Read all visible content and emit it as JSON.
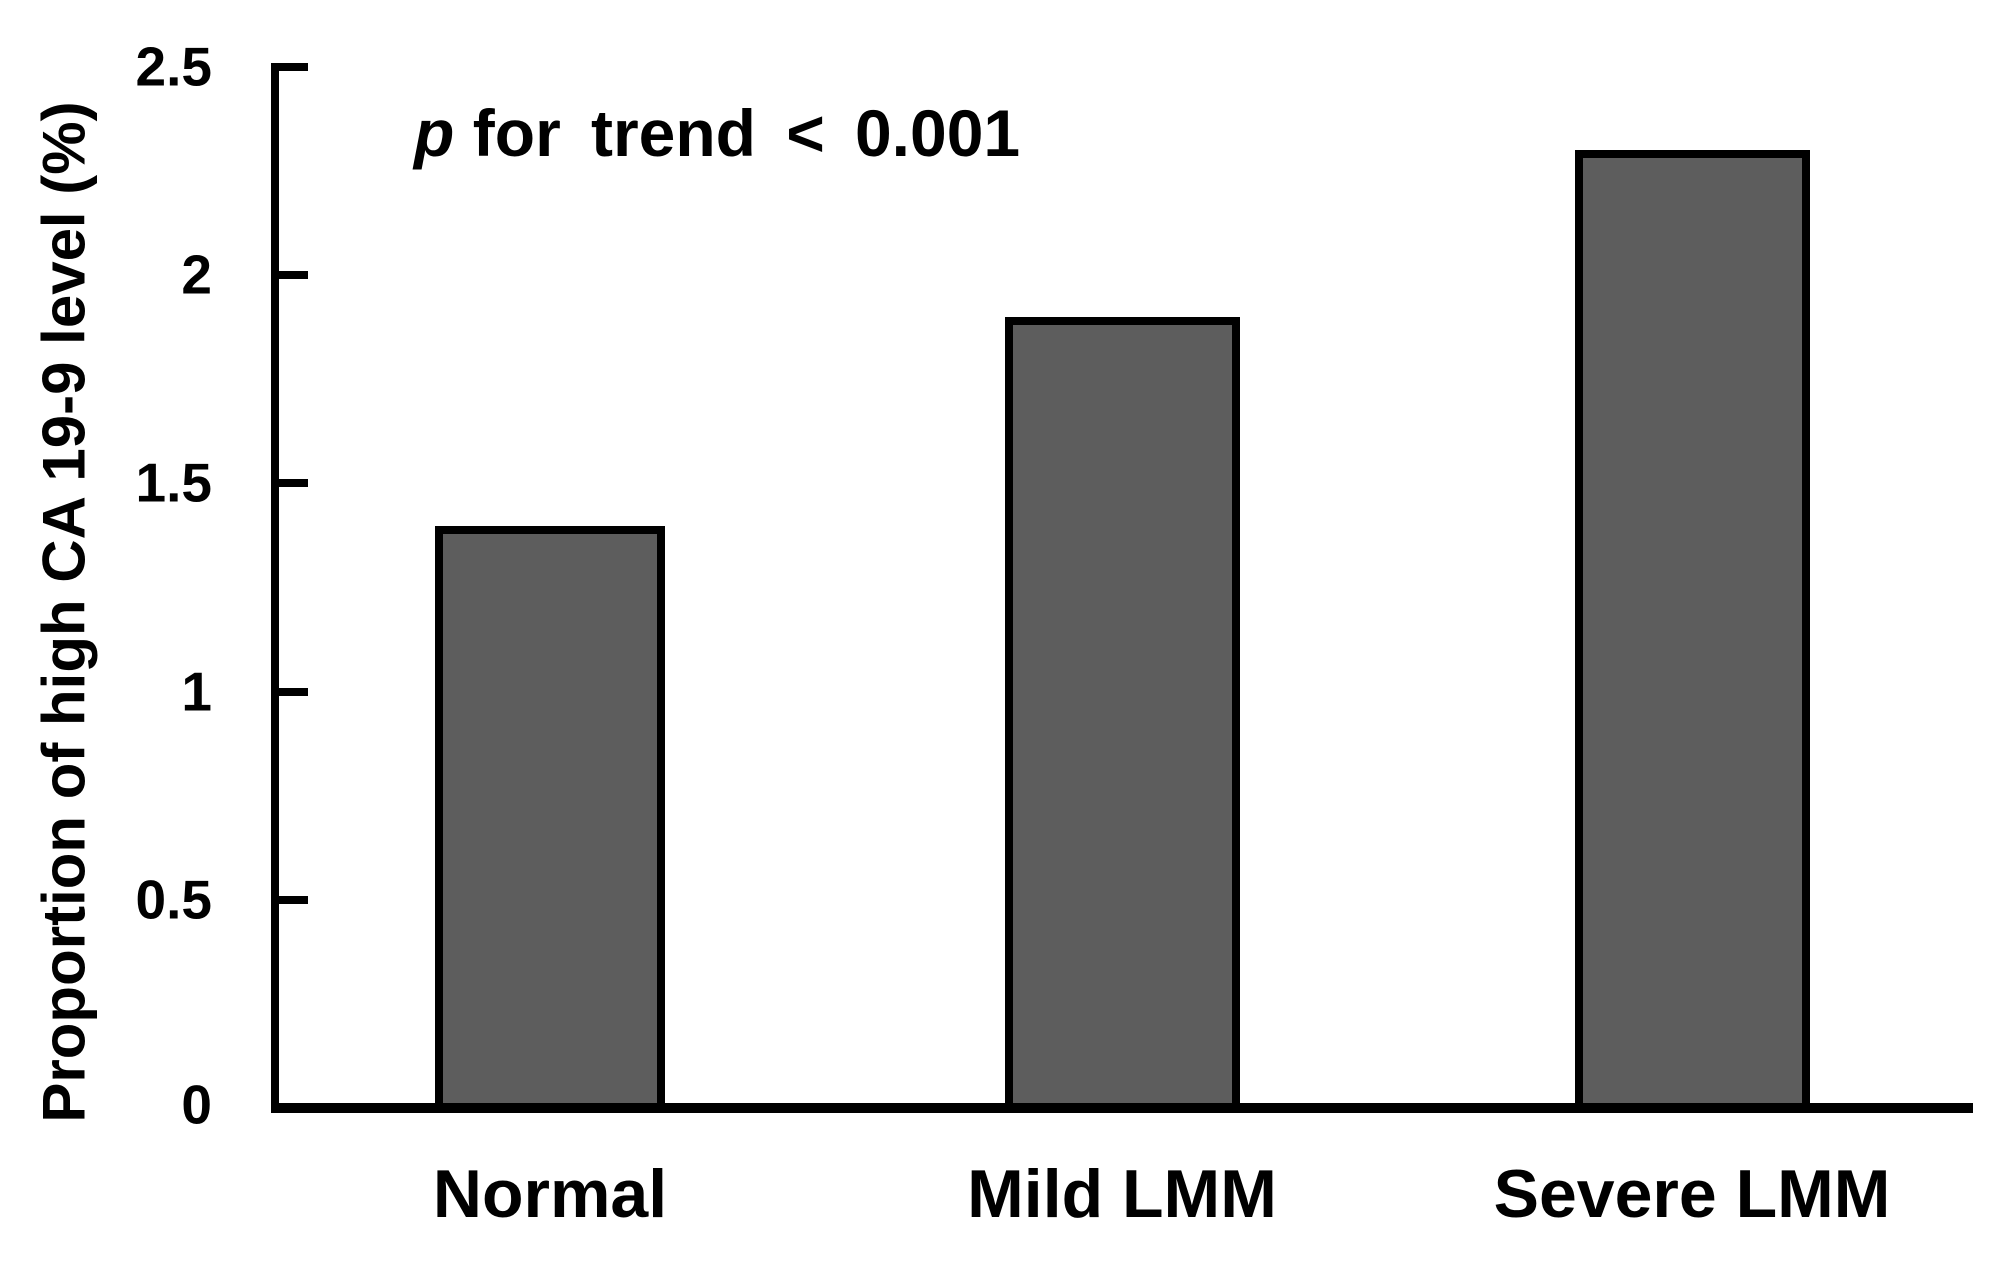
{
  "figure": {
    "background_color": "#FFFFFF",
    "text_color": "#000000"
  },
  "chart_data": {
    "type": "bar",
    "title": "",
    "categories": [
      "Normal",
      "Mild LMM",
      "Severe LMM"
    ],
    "values": [
      1.4,
      1.9,
      2.3
    ],
    "xlabel": "",
    "ylabel": "Proportion of high CA 19-9 level (%)",
    "ylim": [
      0,
      2.5
    ],
    "ytick_interval": 0.5,
    "ytick_labels": [
      "2.5",
      "2",
      "1.5",
      "1",
      "0.5",
      "0"
    ],
    "grid": false,
    "legend": false,
    "annotation": {
      "p_symbol": "p",
      "rest": "for trend < 0.001"
    },
    "bar_fill_color": "#5D5D5D",
    "bar_border_color": "#000000",
    "axis_color": "#000000"
  }
}
